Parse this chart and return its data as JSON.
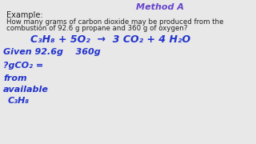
{
  "background_color": "#e8e8e8",
  "title_color": "#6644cc",
  "body_color": "#222222",
  "blue_color": "#2233cc",
  "example_label": "Example:",
  "question_line1": "How many grams of carbon dioxide may be produced from the",
  "question_line2": "combustion of 92.6 g propane and 360 g of oxygen?",
  "equation": "C₃H₈ + 5O₂  →  3 CO₂ + 4 H₂O",
  "given_line": "Given 92.6g    360g",
  "ans1": "?gCO₂ =",
  "ans2": "from",
  "ans3": "available",
  "ans4": "C₃H₈"
}
